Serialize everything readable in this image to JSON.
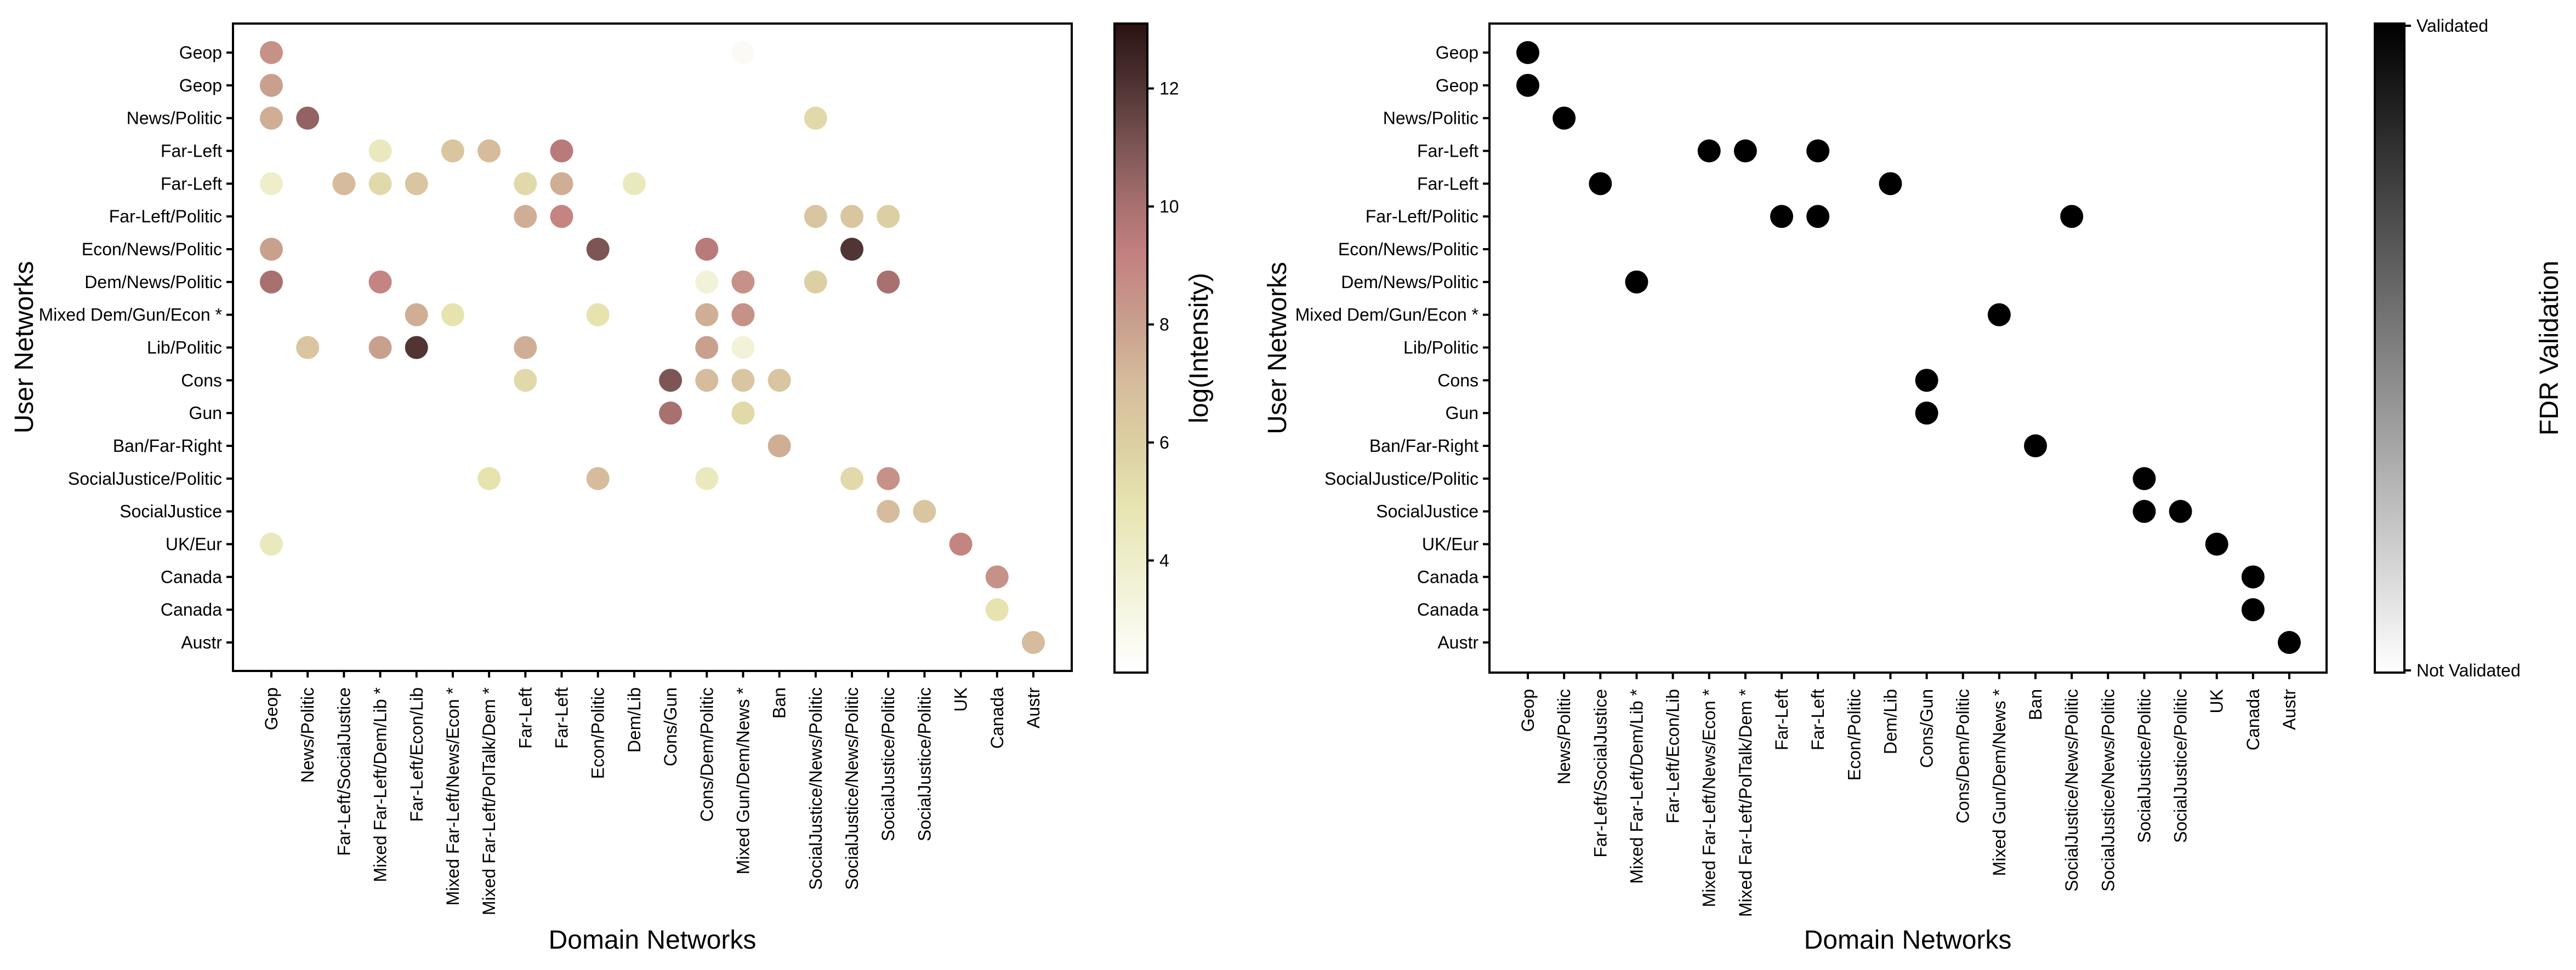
{
  "chart_data": [
    {
      "type": "scatter",
      "subtype": "categorical-bubble-heatmap",
      "xlabel": "Domain Networks",
      "ylabel": "User Networks",
      "x_categories": [
        "Geop",
        "News/Politic",
        "Far-Left/SocialJustice",
        "Mixed Far-Left/Dem/Lib *",
        "Far-Left/Econ/Lib",
        "Mixed Far-Left/News/Econ *",
        "Mixed Far-Left/PolTalk/Dem *",
        "Far-Left",
        "Far-Left",
        "Econ/Politic",
        "Dem/Lib",
        "Cons/Gun",
        "Cons/Dem/Politic",
        "Mixed Gun/Dem/News *",
        "Ban",
        "SocialJustice/News/Politic",
        "SocialJustice/News/Politic",
        "SocialJustice/Politic",
        "SocialJustice/Politic",
        "UK",
        "Canada",
        "Austr"
      ],
      "y_categories": [
        "Geop",
        "Geop",
        "News/Politic",
        "Far-Left",
        "Far-Left",
        "Far-Left/Politic",
        "Econ/News/Politic",
        "Dem/News/Politic",
        "Mixed Dem/Gun/Econ *",
        "Lib/Politic",
        "Cons",
        "Gun",
        "Ban/Far-Right",
        "SocialJustice/Politic",
        "SocialJustice",
        "UK/Eur",
        "Canada",
        "Canada",
        "Austr"
      ],
      "colorbar": {
        "label": "log(Intensity)",
        "range": [
          2.1,
          13.1
        ],
        "ticks": [
          4,
          6,
          8,
          10,
          12
        ],
        "colormap": "pink_r"
      },
      "points": [
        {
          "x": 0,
          "y": 0,
          "value": 8.5
        },
        {
          "x": 13,
          "y": 0,
          "value": 2.5
        },
        {
          "x": 0,
          "y": 1,
          "value": 8.0
        },
        {
          "x": 0,
          "y": 2,
          "value": 7.5
        },
        {
          "x": 1,
          "y": 2,
          "value": 10.5
        },
        {
          "x": 15,
          "y": 2,
          "value": 5.5
        },
        {
          "x": 3,
          "y": 3,
          "value": 4.5
        },
        {
          "x": 5,
          "y": 3,
          "value": 6.5
        },
        {
          "x": 6,
          "y": 3,
          "value": 7.0
        },
        {
          "x": 8,
          "y": 3,
          "value": 9.5
        },
        {
          "x": 0,
          "y": 4,
          "value": 4.0
        },
        {
          "x": 2,
          "y": 4,
          "value": 7.0
        },
        {
          "x": 3,
          "y": 4,
          "value": 5.5
        },
        {
          "x": 4,
          "y": 4,
          "value": 6.5
        },
        {
          "x": 7,
          "y": 4,
          "value": 5.5
        },
        {
          "x": 8,
          "y": 4,
          "value": 7.5
        },
        {
          "x": 10,
          "y": 4,
          "value": 4.5
        },
        {
          "x": 7,
          "y": 5,
          "value": 7.5
        },
        {
          "x": 8,
          "y": 5,
          "value": 9.0
        },
        {
          "x": 15,
          "y": 5,
          "value": 6.5
        },
        {
          "x": 16,
          "y": 5,
          "value": 6.5
        },
        {
          "x": 17,
          "y": 5,
          "value": 6.0
        },
        {
          "x": 0,
          "y": 6,
          "value": 8.0
        },
        {
          "x": 9,
          "y": 6,
          "value": 11.0
        },
        {
          "x": 12,
          "y": 6,
          "value": 9.5
        },
        {
          "x": 16,
          "y": 6,
          "value": 12.0
        },
        {
          "x": 0,
          "y": 7,
          "value": 10.0
        },
        {
          "x": 3,
          "y": 7,
          "value": 9.0
        },
        {
          "x": 12,
          "y": 7,
          "value": 3.5
        },
        {
          "x": 13,
          "y": 7,
          "value": 8.5
        },
        {
          "x": 15,
          "y": 7,
          "value": 6.0
        },
        {
          "x": 17,
          "y": 7,
          "value": 10.0
        },
        {
          "x": 4,
          "y": 8,
          "value": 7.5
        },
        {
          "x": 5,
          "y": 8,
          "value": 5.0
        },
        {
          "x": 9,
          "y": 8,
          "value": 5.0
        },
        {
          "x": 12,
          "y": 8,
          "value": 7.5
        },
        {
          "x": 13,
          "y": 8,
          "value": 8.5
        },
        {
          "x": 1,
          "y": 9,
          "value": 6.5
        },
        {
          "x": 3,
          "y": 9,
          "value": 8.0
        },
        {
          "x": 4,
          "y": 9,
          "value": 12.0
        },
        {
          "x": 7,
          "y": 9,
          "value": 7.5
        },
        {
          "x": 12,
          "y": 9,
          "value": 8.0
        },
        {
          "x": 13,
          "y": 9,
          "value": 3.5
        },
        {
          "x": 7,
          "y": 10,
          "value": 5.5
        },
        {
          "x": 11,
          "y": 10,
          "value": 11.0
        },
        {
          "x": 12,
          "y": 10,
          "value": 7.0
        },
        {
          "x": 13,
          "y": 10,
          "value": 6.5
        },
        {
          "x": 14,
          "y": 10,
          "value": 6.5
        },
        {
          "x": 11,
          "y": 11,
          "value": 10.0
        },
        {
          "x": 13,
          "y": 11,
          "value": 5.5
        },
        {
          "x": 14,
          "y": 12,
          "value": 7.5
        },
        {
          "x": 6,
          "y": 13,
          "value": 5.0
        },
        {
          "x": 9,
          "y": 13,
          "value": 7.0
        },
        {
          "x": 12,
          "y": 13,
          "value": 4.5
        },
        {
          "x": 16,
          "y": 13,
          "value": 5.5
        },
        {
          "x": 17,
          "y": 13,
          "value": 8.5
        },
        {
          "x": 17,
          "y": 14,
          "value": 7.0
        },
        {
          "x": 18,
          "y": 14,
          "value": 6.5
        },
        {
          "x": 0,
          "y": 15,
          "value": 4.5
        },
        {
          "x": 19,
          "y": 15,
          "value": 9.0
        },
        {
          "x": 20,
          "y": 16,
          "value": 8.5
        },
        {
          "x": 20,
          "y": 17,
          "value": 5.0
        },
        {
          "x": 21,
          "y": 18,
          "value": 7.0
        }
      ]
    },
    {
      "type": "scatter",
      "subtype": "categorical-bubble-heatmap",
      "xlabel": "Domain Networks",
      "ylabel": "User Networks",
      "x_categories": [
        "Geop",
        "News/Politic",
        "Far-Left/SocialJustice",
        "Mixed Far-Left/Dem/Lib *",
        "Far-Left/Econ/Lib",
        "Mixed Far-Left/News/Econ *",
        "Mixed Far-Left/PolTalk/Dem *",
        "Far-Left",
        "Far-Left",
        "Econ/Politic",
        "Dem/Lib",
        "Cons/Gun",
        "Cons/Dem/Politic",
        "Mixed Gun/Dem/News *",
        "Ban",
        "SocialJustice/News/Politic",
        "SocialJustice/News/Politic",
        "SocialJustice/Politic",
        "SocialJustice/Politic",
        "UK",
        "Canada",
        "Austr"
      ],
      "y_categories": [
        "Geop",
        "Geop",
        "News/Politic",
        "Far-Left",
        "Far-Left",
        "Far-Left/Politic",
        "Econ/News/Politic",
        "Dem/News/Politic",
        "Mixed Dem/Gun/Econ *",
        "Lib/Politic",
        "Cons",
        "Gun",
        "Ban/Far-Right",
        "SocialJustice/Politic",
        "SocialJustice",
        "UK/Eur",
        "Canada",
        "Canada",
        "Austr"
      ],
      "colorbar": {
        "label": "FDR Validation",
        "top_label": "Validated",
        "bottom_label": "Not Validated",
        "colormap": "gray_r"
      },
      "point_color": "#000000",
      "points": [
        {
          "x": 0,
          "y": 0
        },
        {
          "x": 0,
          "y": 1
        },
        {
          "x": 1,
          "y": 2
        },
        {
          "x": 5,
          "y": 3
        },
        {
          "x": 6,
          "y": 3
        },
        {
          "x": 8,
          "y": 3
        },
        {
          "x": 2,
          "y": 4
        },
        {
          "x": 10,
          "y": 4
        },
        {
          "x": 7,
          "y": 5
        },
        {
          "x": 8,
          "y": 5
        },
        {
          "x": 15,
          "y": 5
        },
        {
          "x": 3,
          "y": 7
        },
        {
          "x": 13,
          "y": 8
        },
        {
          "x": 11,
          "y": 10
        },
        {
          "x": 11,
          "y": 11
        },
        {
          "x": 14,
          "y": 12
        },
        {
          "x": 17,
          "y": 13
        },
        {
          "x": 17,
          "y": 14
        },
        {
          "x": 18,
          "y": 14
        },
        {
          "x": 19,
          "y": 15
        },
        {
          "x": 20,
          "y": 16
        },
        {
          "x": 20,
          "y": 17
        },
        {
          "x": 21,
          "y": 18
        }
      ]
    }
  ]
}
